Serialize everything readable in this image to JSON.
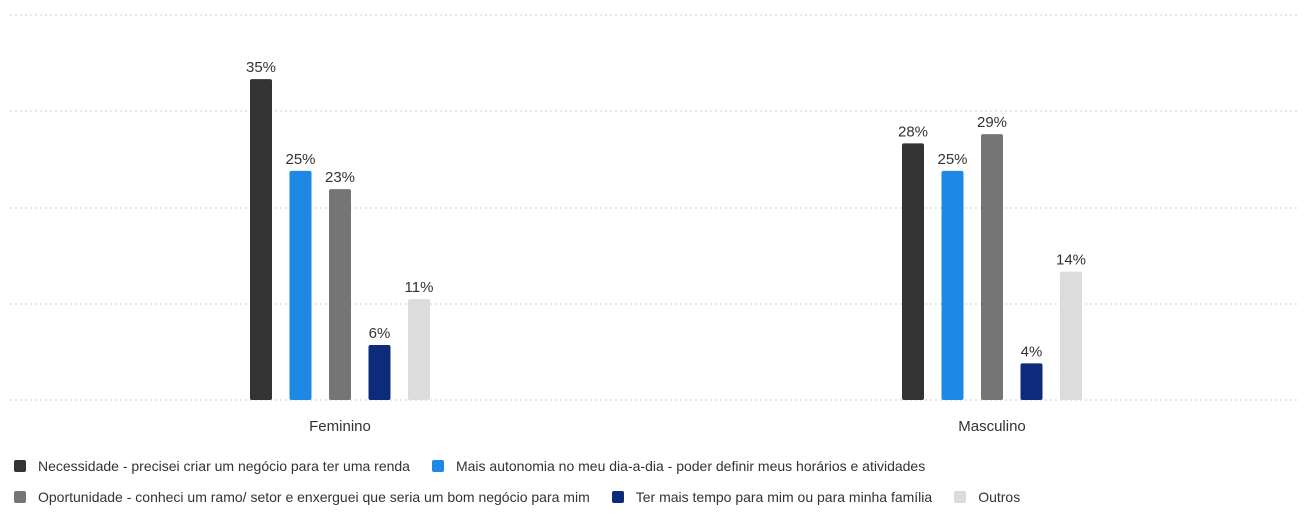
{
  "chart_data": {
    "type": "bar",
    "categories": [
      "Feminino",
      "Masculino"
    ],
    "series": [
      {
        "name": "Necessidade - precisei criar um negócio para ter uma renda",
        "color": "#333333",
        "values": [
          35,
          28
        ]
      },
      {
        "name": "Mais autonomia no meu dia-a-dia - poder definir meus horários e atividades",
        "color": "#1e88e5",
        "values": [
          25,
          25
        ]
      },
      {
        "name": "Oportunidade - conheci um ramo/ setor e enxerguei que seria um bom negócio para mim",
        "color": "#757575",
        "values": [
          23,
          29
        ]
      },
      {
        "name": "Ter mais tempo para mim ou para minha família",
        "color": "#0d2b7a",
        "values": [
          6,
          4
        ]
      },
      {
        "name": "Outros",
        "color": "#dcdcdc",
        "values": [
          11,
          14
        ]
      }
    ],
    "value_suffix": "%",
    "ylim": [
      0,
      42
    ],
    "grid": true,
    "legend_position": "bottom-left"
  }
}
